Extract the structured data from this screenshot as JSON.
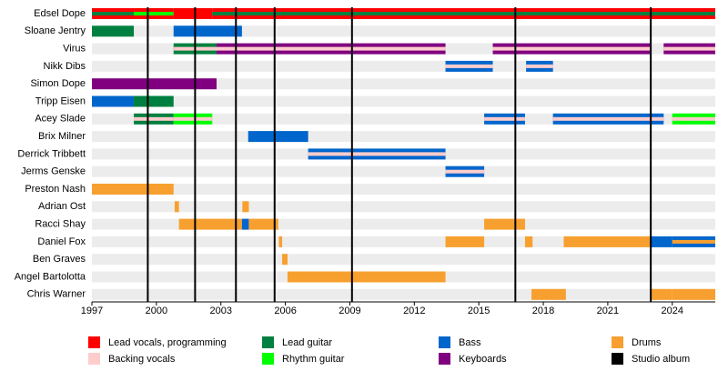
{
  "chart_data": {
    "type": "timeline",
    "xlim": [
      1997,
      2026
    ],
    "xticks": [
      1997,
      2000,
      2003,
      2006,
      2009,
      2012,
      2015,
      2018,
      2021,
      2024
    ],
    "roles": [
      {
        "name": "Lead vocals, programming",
        "color": "#ff0000"
      },
      {
        "name": "Backing vocals",
        "color": "#ffcccc"
      },
      {
        "name": "Lead guitar",
        "color": "#008040"
      },
      {
        "name": "Rhythm guitar",
        "color": "#00ff00"
      },
      {
        "name": "Bass",
        "color": "#0066cc"
      },
      {
        "name": "Keyboards",
        "color": "#800080"
      },
      {
        "name": "Drums",
        "color": "#f7a030"
      },
      {
        "name": "Studio album",
        "color": "#000000"
      }
    ],
    "album_role": 7,
    "albums": [
      1999.6,
      2001.8,
      2003.7,
      2005.5,
      2009.1,
      2016.7,
      2023.0
    ],
    "members": [
      {
        "name": "Edsel Dope",
        "spans": [
          {
            "start": 1997,
            "end": 1998.95,
            "role": 0,
            "stripe": 2
          },
          {
            "start": 1998.95,
            "end": 2000.8,
            "role": 0,
            "stripe": 3
          },
          {
            "start": 2000.8,
            "end": 2002.6,
            "role": 0
          },
          {
            "start": 2002.6,
            "end": 2026,
            "role": 0,
            "stripe": 2
          }
        ]
      },
      {
        "name": "Sloane Jentry",
        "spans": [
          {
            "start": 1997,
            "end": 1998.95,
            "role": 2
          },
          {
            "start": 2000.8,
            "end": 2003.98,
            "role": 4
          }
        ]
      },
      {
        "name": "Virus",
        "spans": [
          {
            "start": 2000.8,
            "end": 2002.8,
            "role": 2,
            "stripe": 1
          },
          {
            "start": 2002.8,
            "end": 2013.45,
            "role": 5,
            "stripe": 1
          },
          {
            "start": 2015.65,
            "end": 2023.0,
            "role": 5,
            "stripe": 1
          },
          {
            "start": 2023.6,
            "end": 2026,
            "role": 5,
            "stripe": 1
          }
        ]
      },
      {
        "name": "Nikk Dibs",
        "spans": [
          {
            "start": 2013.45,
            "end": 2015.65,
            "role": 4,
            "stripe": 1
          },
          {
            "start": 2017.2,
            "end": 2018.45,
            "role": 4,
            "stripe": 1
          }
        ]
      },
      {
        "name": "Simon Dope",
        "spans": [
          {
            "start": 1997,
            "end": 2002.8,
            "role": 5
          }
        ]
      },
      {
        "name": "Tripp Eisen",
        "spans": [
          {
            "start": 1997,
            "end": 1998.95,
            "role": 4
          },
          {
            "start": 1998.95,
            "end": 2000.8,
            "role": 2
          }
        ]
      },
      {
        "name": "Acey Slade",
        "spans": [
          {
            "start": 1998.95,
            "end": 2000.8,
            "role": 2,
            "stripe": 1
          },
          {
            "start": 2000.8,
            "end": 2002.6,
            "role": 3,
            "stripe": 1
          },
          {
            "start": 2015.25,
            "end": 2017.15,
            "role": 4,
            "stripe": 1
          },
          {
            "start": 2018.45,
            "end": 2023.6,
            "role": 4,
            "stripe": 1
          },
          {
            "start": 2024.0,
            "end": 2026,
            "role": 3,
            "stripe": 1
          }
        ]
      },
      {
        "name": "Brix Milner",
        "spans": [
          {
            "start": 2004.27,
            "end": 2007.06,
            "role": 4
          }
        ]
      },
      {
        "name": "Derrick Tribbett",
        "spans": [
          {
            "start": 2007.06,
            "end": 2013.45,
            "role": 4,
            "stripe": 1
          }
        ]
      },
      {
        "name": "Jerms Genske",
        "spans": [
          {
            "start": 2013.45,
            "end": 2015.25,
            "role": 4,
            "stripe": 1
          }
        ]
      },
      {
        "name": "Preston Nash",
        "spans": [
          {
            "start": 1997,
            "end": 2000.8,
            "role": 6
          }
        ]
      },
      {
        "name": "Adrian Ost",
        "spans": [
          {
            "start": 2000.85,
            "end": 2001.05,
            "role": 6
          },
          {
            "start": 2004.0,
            "end": 2004.3,
            "role": 6
          }
        ]
      },
      {
        "name": "Racci Shay",
        "spans": [
          {
            "start": 2001.05,
            "end": 2003.98,
            "role": 6
          },
          {
            "start": 2003.98,
            "end": 2004.3,
            "role": 4
          },
          {
            "start": 2004.3,
            "end": 2005.67,
            "role": 6
          },
          {
            "start": 2015.25,
            "end": 2017.15,
            "role": 6
          }
        ]
      },
      {
        "name": "Daniel Fox",
        "spans": [
          {
            "start": 2005.7,
            "end": 2005.85,
            "role": 6
          },
          {
            "start": 2013.45,
            "end": 2015.25,
            "role": 6
          },
          {
            "start": 2017.15,
            "end": 2017.5,
            "role": 6
          },
          {
            "start": 2018.95,
            "end": 2023.0,
            "role": 6
          },
          {
            "start": 2023.0,
            "end": 2024.0,
            "role": 4
          },
          {
            "start": 2024.0,
            "end": 2026,
            "role": 4,
            "stripe": 6
          }
        ]
      },
      {
        "name": "Ben Graves",
        "spans": [
          {
            "start": 2005.85,
            "end": 2006.1,
            "role": 6
          }
        ]
      },
      {
        "name": "Angel Bartolotta",
        "spans": [
          {
            "start": 2006.1,
            "end": 2013.45,
            "role": 6
          }
        ]
      },
      {
        "name": "Chris Warner",
        "spans": [
          {
            "start": 2017.45,
            "end": 2019.05,
            "role": 6
          },
          {
            "start": 2023.0,
            "end": 2024.0,
            "role": 6
          },
          {
            "start": 2024.0,
            "end": 2026,
            "role": 6
          }
        ]
      }
    ]
  }
}
